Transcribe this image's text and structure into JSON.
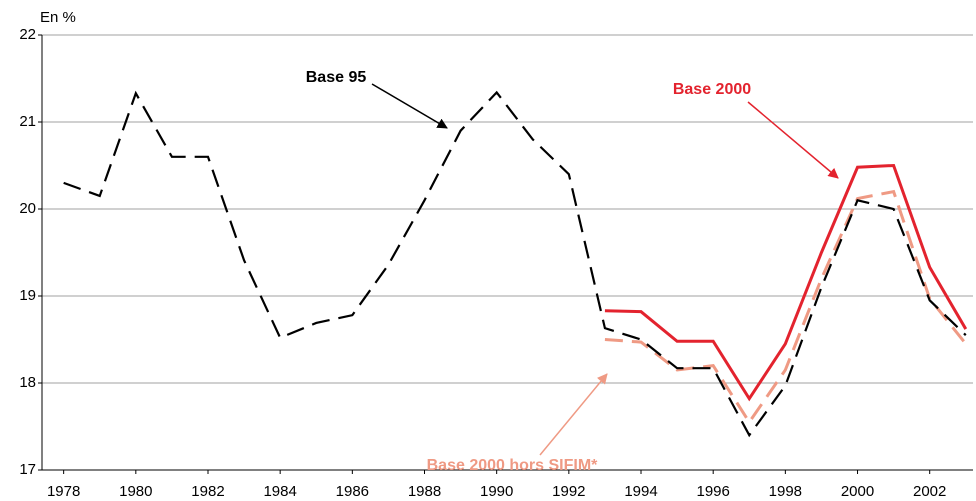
{
  "chart_data": {
    "type": "line",
    "y_label": "En %",
    "x": [
      1978,
      1979,
      1980,
      1981,
      1982,
      1983,
      1984,
      1985,
      1986,
      1987,
      1988,
      1989,
      1990,
      1991,
      1992,
      1993,
      1994,
      1995,
      1996,
      1997,
      1998,
      1999,
      2000,
      2001,
      2002,
      2003
    ],
    "series": [
      {
        "name": "Base 95",
        "color": "#000000",
        "values": [
          20.3,
          20.15,
          21.33,
          20.6,
          20.6,
          19.41,
          18.52,
          18.69,
          18.78,
          19.36,
          20.1,
          20.9,
          21.34,
          20.8,
          20.4,
          18.63,
          18.5,
          18.17,
          18.17,
          17.4,
          17.97,
          19.1,
          20.1,
          20.0,
          18.95,
          18.55
        ]
      },
      {
        "name": "Base 2000",
        "color": "#e3232e",
        "values": [
          null,
          null,
          null,
          null,
          null,
          null,
          null,
          null,
          null,
          null,
          null,
          null,
          null,
          null,
          null,
          18.83,
          18.82,
          18.48,
          18.48,
          17.82,
          18.45,
          19.5,
          20.48,
          20.5,
          19.33,
          18.62
        ]
      },
      {
        "name": "Base 2000 hors SIFIM*",
        "color": "#ef9a84",
        "values": [
          null,
          null,
          null,
          null,
          null,
          null,
          null,
          null,
          null,
          null,
          null,
          null,
          null,
          null,
          null,
          18.5,
          18.47,
          18.15,
          18.2,
          17.55,
          18.15,
          19.2,
          20.12,
          20.2,
          18.97,
          18.45
        ]
      }
    ],
    "xlim": [
      1977.4,
      2003.2
    ],
    "xticks": [
      1978,
      1980,
      1982,
      1984,
      1986,
      1988,
      1990,
      1992,
      1994,
      1996,
      1998,
      2000,
      2002
    ],
    "ylim": [
      17,
      22
    ],
    "yticks": [
      17,
      18,
      19,
      20,
      21,
      22
    ],
    "grid": true
  }
}
